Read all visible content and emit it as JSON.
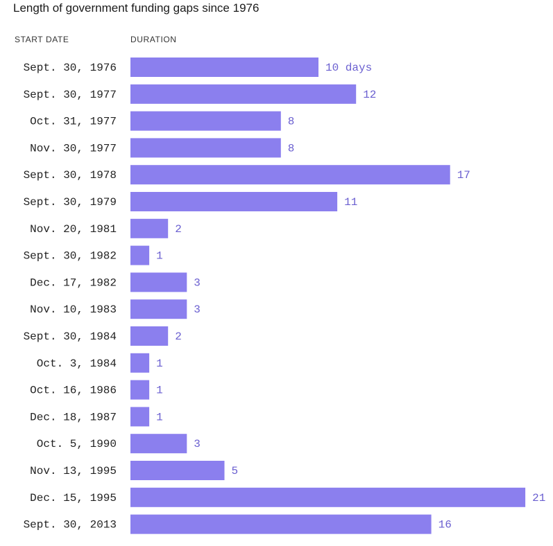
{
  "title": "Length of government funding gaps since 1976",
  "columns": {
    "start_date": "START DATE",
    "duration": "DURATION"
  },
  "colors": {
    "bar": "#8b7fee",
    "value_text": "#6a5fd0",
    "label_text": "#222222"
  },
  "chart_data": {
    "type": "bar",
    "orientation": "horizontal",
    "title": "Length of government funding gaps since 1976",
    "xlabel": "DURATION",
    "ylabel": "START DATE",
    "unit_label": "days",
    "xlim": [
      0,
      21
    ],
    "grid": false,
    "categories": [
      "Sept. 30, 1976",
      "Sept. 30, 1977",
      "Oct. 31, 1977",
      "Nov. 30, 1977",
      "Sept. 30, 1978",
      "Sept. 30, 1979",
      "Nov. 20, 1981",
      "Sept. 30, 1982",
      "Dec. 17, 1982",
      "Nov. 10, 1983",
      "Sept. 30, 1984",
      "Oct. 3, 1984",
      "Oct. 16, 1986",
      "Dec. 18, 1987",
      "Oct. 5, 1990",
      "Nov. 13, 1995",
      "Dec. 15, 1995",
      "Sept. 30, 2013"
    ],
    "values": [
      10,
      12,
      8,
      8,
      17,
      11,
      2,
      1,
      3,
      3,
      2,
      1,
      1,
      1,
      3,
      5,
      21,
      16
    ],
    "value_labels": [
      "10 days",
      "12",
      "8",
      "8",
      "17",
      "11",
      "2",
      "1",
      "3",
      "3",
      "2",
      "1",
      "1",
      "1",
      "3",
      "5",
      "21",
      "16"
    ]
  }
}
